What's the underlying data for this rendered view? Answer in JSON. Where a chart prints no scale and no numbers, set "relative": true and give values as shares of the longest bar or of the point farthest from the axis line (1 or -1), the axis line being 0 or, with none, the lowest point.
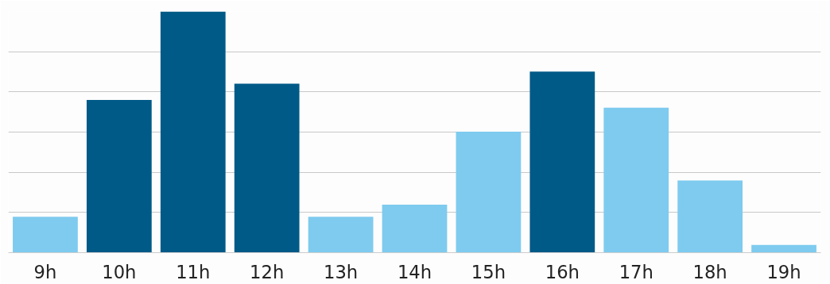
{
  "chart_data": {
    "type": "bar",
    "relative": true,
    "grid": "y",
    "categories": [
      "9h",
      "10h",
      "11h",
      "12h",
      "13h",
      "14h",
      "15h",
      "16h",
      "17h",
      "18h",
      "19h"
    ],
    "values": [
      0.149,
      0.633,
      1,
      0.701,
      0.149,
      0.199,
      0.502,
      0.751,
      0.601,
      0.299,
      0.032
    ],
    "colors": [
      "#7ecbef",
      "#005a87",
      "#005a87",
      "#005a87",
      "#7ecbef",
      "#7ecbef",
      "#7ecbef",
      "#005a87",
      "#7ecbef",
      "#7ecbef",
      "#7ecbef"
    ]
  }
}
